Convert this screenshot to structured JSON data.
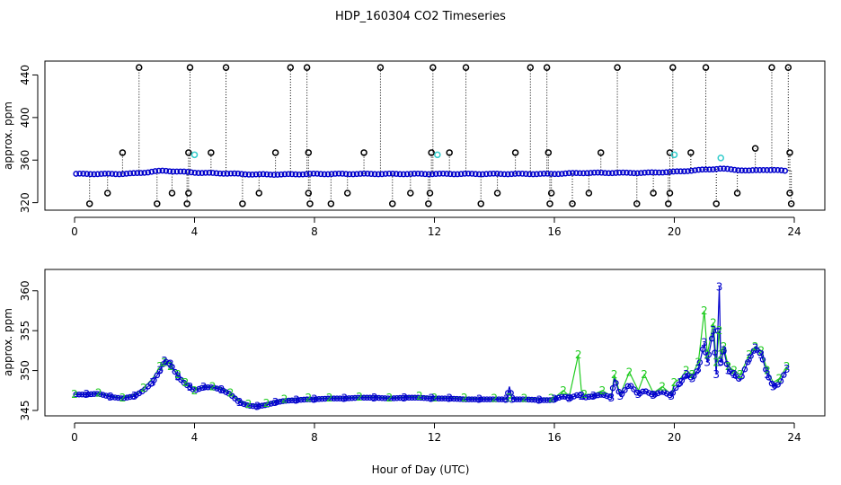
{
  "title": "HDP_160304  CO2 Timeseries",
  "xlabel": "Hour of Day (UTC)",
  "colors": {
    "black": "#000000",
    "blue": "#0000cc",
    "cyan": "#33cccc",
    "green": "#22cc22"
  },
  "chart_data": [
    {
      "type": "scatter",
      "ylabel": "approx. ppm",
      "xlim": [
        0,
        24
      ],
      "ylim": [
        318,
        448
      ],
      "xticks": [
        0,
        4,
        8,
        12,
        16,
        20,
        24
      ],
      "yticks": [
        320,
        360,
        400,
        440
      ],
      "grid": false,
      "spikes": [
        [
          2.15,
          447
        ],
        [
          3.85,
          447
        ],
        [
          5.05,
          447
        ],
        [
          7.2,
          447
        ],
        [
          7.75,
          447
        ],
        [
          10.2,
          447
        ],
        [
          11.95,
          447
        ],
        [
          13.05,
          447
        ],
        [
          15.2,
          447
        ],
        [
          15.75,
          447
        ],
        [
          18.1,
          447
        ],
        [
          19.95,
          447
        ],
        [
          21.05,
          447
        ],
        [
          23.25,
          447
        ],
        [
          23.8,
          447
        ],
        [
          1.6,
          367
        ],
        [
          3.8,
          367
        ],
        [
          4.55,
          367
        ],
        [
          6.7,
          367
        ],
        [
          7.8,
          367
        ],
        [
          9.65,
          367
        ],
        [
          11.9,
          367
        ],
        [
          12.5,
          367
        ],
        [
          14.7,
          367
        ],
        [
          15.8,
          367
        ],
        [
          17.55,
          367
        ],
        [
          19.85,
          367
        ],
        [
          20.55,
          367
        ],
        [
          22.7,
          371
        ],
        [
          23.85,
          367
        ],
        [
          0.5,
          319
        ],
        [
          2.75,
          319
        ],
        [
          3.75,
          319
        ],
        [
          5.6,
          319
        ],
        [
          7.85,
          319
        ],
        [
          8.55,
          319
        ],
        [
          10.6,
          319
        ],
        [
          11.8,
          319
        ],
        [
          13.55,
          319
        ],
        [
          15.85,
          319
        ],
        [
          16.6,
          319
        ],
        [
          18.75,
          319
        ],
        [
          19.8,
          319
        ],
        [
          21.4,
          319
        ],
        [
          23.9,
          319
        ],
        [
          1.1,
          329
        ],
        [
          3.25,
          329
        ],
        [
          3.8,
          329
        ],
        [
          6.15,
          329
        ],
        [
          7.8,
          329
        ],
        [
          9.1,
          329
        ],
        [
          11.2,
          329
        ],
        [
          11.85,
          329
        ],
        [
          14.1,
          329
        ],
        [
          15.9,
          329
        ],
        [
          17.15,
          329
        ],
        [
          19.3,
          329
        ],
        [
          19.85,
          329
        ],
        [
          22.1,
          329
        ],
        [
          23.85,
          329
        ]
      ],
      "cyan_points": [
        [
          4.0,
          365
        ],
        [
          12.1,
          365
        ],
        [
          20.0,
          365
        ],
        [
          21.55,
          362
        ]
      ],
      "base_series_hours": [
        0,
        0.5,
        1,
        1.5,
        2,
        2.4,
        2.7,
        3.0,
        3.3,
        3.6,
        3.9,
        4.2,
        5,
        6,
        7,
        8,
        9,
        10,
        11,
        12,
        13,
        14,
        15,
        15.9,
        16.5,
        17,
        18,
        19,
        20,
        20.5,
        21,
        21.5,
        22,
        22.5,
        23,
        23.7
      ],
      "base_series_ppm": [
        347,
        347,
        347,
        347,
        347.5,
        348.5,
        349.5,
        350,
        349.5,
        349,
        348.5,
        348,
        347.5,
        346.5,
        346.5,
        347,
        347,
        347,
        347,
        347,
        347,
        347,
        347,
        347,
        347.5,
        348,
        348,
        348,
        349,
        350,
        351,
        352,
        351,
        350,
        351,
        350
      ]
    },
    {
      "type": "line",
      "ylabel": "approx. ppm",
      "xlim": [
        0,
        24
      ],
      "ylim": [
        345,
        362
      ],
      "xticks": [
        0,
        4,
        8,
        12,
        16,
        20,
        24
      ],
      "yticks": [
        345,
        350,
        355,
        360
      ],
      "grid": false,
      "series_markers": [
        "2",
        "3"
      ],
      "x": [
        0,
        0.4,
        0.8,
        1.2,
        1.6,
        2.0,
        2.3,
        2.6,
        2.85,
        3.0,
        3.2,
        3.45,
        3.7,
        3.85,
        4.0,
        4.3,
        4.6,
        4.9,
        5.2,
        5.5,
        5.8,
        6.1,
        6.4,
        6.7,
        7.0,
        7.4,
        7.8,
        8.0,
        8.5,
        9.0,
        9.5,
        10.0,
        10.5,
        11.0,
        11.5,
        11.9,
        12.0,
        12.5,
        13.0,
        13.5,
        14.0,
        14.4,
        14.5,
        14.6,
        15.0,
        15.5,
        15.9,
        16.0,
        16.3,
        16.5,
        16.8,
        16.9,
        17.0,
        17.3,
        17.6,
        17.9,
        18.0,
        18.2,
        18.5,
        18.8,
        19.0,
        19.3,
        19.6,
        19.9,
        20.0,
        20.2,
        20.4,
        20.6,
        20.8,
        21.0,
        21.1,
        21.3,
        21.4,
        21.5,
        21.55,
        21.65,
        21.8,
        22.0,
        22.2,
        22.5,
        22.7,
        22.9,
        23.1,
        23.3,
        23.5,
        23.75
      ],
      "series": [
        {
          "values": [
            347,
            347,
            347.2,
            346.8,
            346.6,
            347,
            347.8,
            349,
            350.5,
            351,
            350.5,
            349.5,
            348.5,
            348,
            347.5,
            348,
            348,
            347.8,
            347.2,
            346.2,
            345.8,
            345.7,
            345.9,
            346.2,
            346.4,
            346.5,
            346.6,
            346.5,
            346.6,
            346.6,
            346.7,
            346.7,
            346.6,
            346.7,
            346.8,
            346.7,
            346.6,
            346.6,
            346.6,
            346.5,
            346.5,
            346.5,
            346.6,
            346.5,
            346.5,
            346.5,
            346.5,
            346.6,
            347.5,
            346.8,
            352,
            347.5,
            347,
            347,
            347.5,
            346.8,
            349.5,
            347,
            349.8,
            347.5,
            349.5,
            347.2,
            348,
            347,
            348.5,
            349,
            350,
            349.5,
            351,
            357.5,
            352,
            356,
            351,
            355,
            352,
            353,
            350.5,
            350,
            349.5,
            352,
            353,
            352.5,
            350,
            348.5,
            349,
            350.5
          ]
        },
        {
          "values": [
            347,
            347,
            347.1,
            346.7,
            346.5,
            346.8,
            347.5,
            348.5,
            350,
            351.2,
            350.8,
            349.2,
            348.3,
            347.9,
            347.5,
            347.9,
            347.9,
            347.6,
            347,
            346,
            345.6,
            345.5,
            345.7,
            346,
            346.2,
            346.3,
            346.4,
            346.4,
            346.5,
            346.5,
            346.6,
            346.6,
            346.5,
            346.6,
            346.6,
            346.5,
            346.5,
            346.5,
            346.4,
            346.4,
            346.4,
            346.4,
            348,
            346.4,
            346.4,
            346.3,
            346.3,
            346.4,
            346.8,
            346.5,
            347,
            346.8,
            346.6,
            346.8,
            347,
            346.6,
            349,
            346.8,
            348.3,
            347,
            347.5,
            346.9,
            347.4,
            346.8,
            347.6,
            348.5,
            349.5,
            349,
            350.2,
            353.5,
            351,
            355,
            349.5,
            360.5,
            351,
            352.5,
            350,
            349.5,
            348.8,
            351.5,
            352.8,
            352,
            349.5,
            348,
            348.3,
            350.2
          ]
        }
      ]
    }
  ]
}
